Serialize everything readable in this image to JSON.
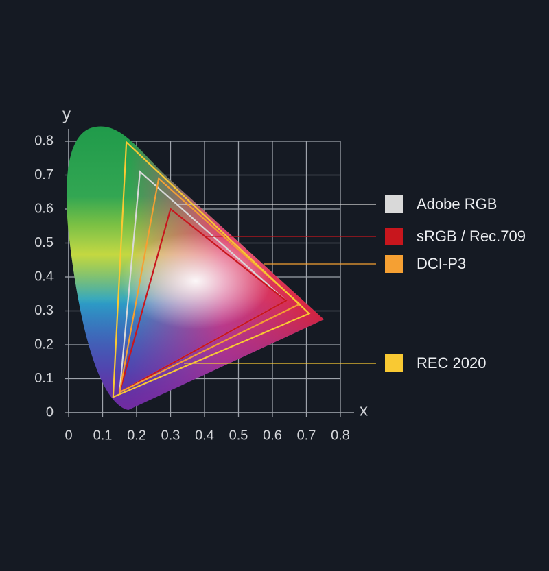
{
  "chart_data": {
    "type": "gamut",
    "x_label": "x",
    "y_label": "y",
    "xlim": [
      0,
      0.8
    ],
    "ylim": [
      0,
      0.8
    ],
    "xticks": [
      0,
      0.1,
      0.2,
      0.3,
      0.4,
      0.5,
      0.6,
      0.7,
      0.8
    ],
    "yticks": [
      0,
      0.1,
      0.2,
      0.3,
      0.4,
      0.5,
      0.6,
      0.7,
      0.8
    ],
    "grid": true,
    "series": [
      {
        "name": "Adobe RGB",
        "color": "#d9d9d9",
        "x": [
          0.64,
          0.21,
          0.15
        ],
        "y": [
          0.33,
          0.71,
          0.06
        ]
      },
      {
        "name": "sRGB / Rec.709",
        "color": "#c8161d",
        "x": [
          0.64,
          0.3,
          0.15
        ],
        "y": [
          0.33,
          0.6,
          0.06
        ]
      },
      {
        "name": "DCI-P3",
        "color": "#f5a033",
        "x": [
          0.68,
          0.265,
          0.15
        ],
        "y": [
          0.32,
          0.69,
          0.06
        ]
      },
      {
        "name": "REC 2020",
        "color": "#f9c933",
        "x": [
          0.708,
          0.17,
          0.131
        ],
        "y": [
          0.292,
          0.797,
          0.046
        ]
      }
    ]
  }
}
